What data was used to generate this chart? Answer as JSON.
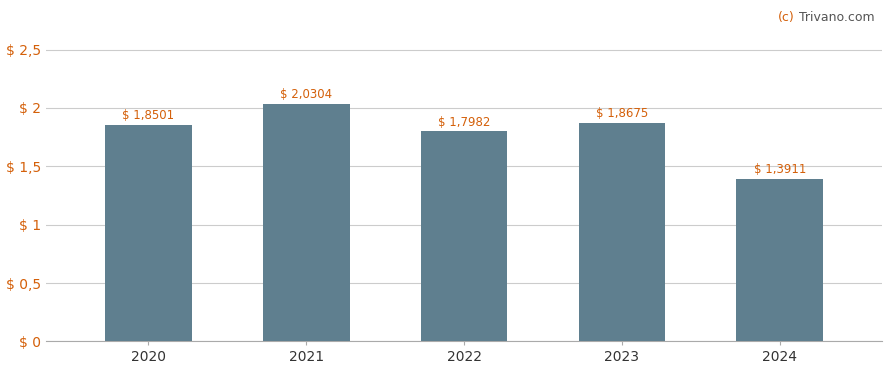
{
  "categories": [
    "2020",
    "2021",
    "2022",
    "2023",
    "2024"
  ],
  "values": [
    1.8501,
    2.0304,
    1.7982,
    1.8675,
    1.3911
  ],
  "labels": [
    "$ 1,8501",
    "$ 2,0304",
    "$ 1,7982",
    "$ 1,8675",
    "$ 1,3911"
  ],
  "bar_color": "#5f7f8f",
  "background_color": "#ffffff",
  "yticks": [
    0,
    0.5,
    1.0,
    1.5,
    2.0,
    2.5
  ],
  "ytick_labels": [
    "$ 0",
    "$ 0,5",
    "$ 1",
    "$ 1,5",
    "$ 2",
    "$ 2,5"
  ],
  "ylim": [
    0,
    2.75
  ],
  "label_color_dollar": "#d4600a",
  "label_color_num": "#333333",
  "tick_color_dollar": "#d4600a",
  "tick_color_num": "#333333",
  "label_fontsize": 8.5,
  "tick_fontsize": 10,
  "watermark_fontsize": 9,
  "wm_c_color": "#d4600a",
  "wm_trivano_color": "#555555",
  "grid_color": "#cccccc",
  "spine_color": "#aaaaaa",
  "bar_width": 0.55
}
